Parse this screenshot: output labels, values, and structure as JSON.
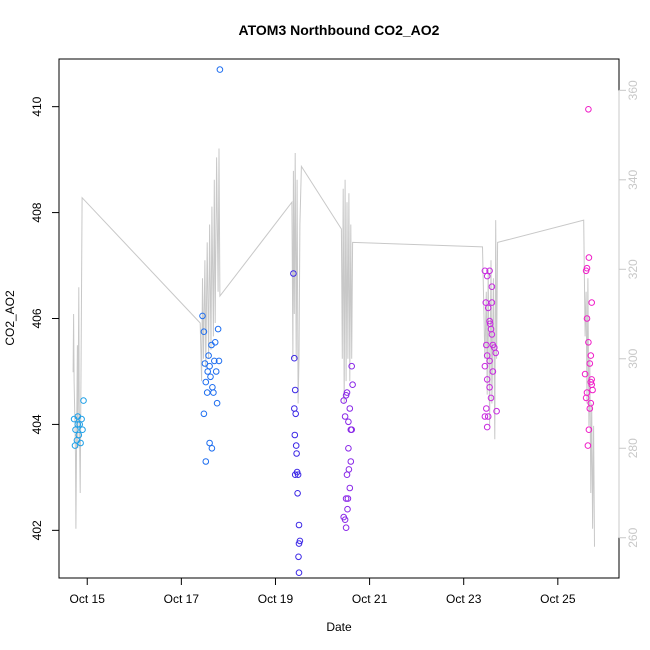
{
  "chart_data": {
    "type": "scatter",
    "title": "ATOM3 Northbound CO2_AO2",
    "xlabel": "Date",
    "ylabel": "CO2_AO2",
    "x_ticks": [
      "Oct 15",
      "Oct 17",
      "Oct 19",
      "Oct 21",
      "Oct 23",
      "Oct 25"
    ],
    "x_tick_days": [
      15,
      17,
      19,
      21,
      23,
      25
    ],
    "xlim": [
      14.4,
      26.3
    ],
    "y_ticks": [
      "402",
      "404",
      "406",
      "408",
      "410"
    ],
    "y_tick_values": [
      402,
      404,
      406,
      408,
      410
    ],
    "ylim": [
      401.1,
      410.9
    ],
    "y2_ticks": [
      "260",
      "280",
      "300",
      "320",
      "340",
      "360"
    ],
    "y2_tick_values": [
      260,
      280,
      300,
      320,
      340,
      360
    ],
    "y2lim": [
      251,
      367
    ],
    "grid": false,
    "colors": {
      "points": [
        "#1ea0e8",
        "#1e6ef0",
        "#3c28e6",
        "#8a28e8",
        "#c828e0",
        "#f01ec8"
      ],
      "line": "#c8c8c8",
      "right_axis": "#c8c8c8",
      "axis": "#000000"
    },
    "points": [
      {
        "day": 14.72,
        "y": 404.1
      },
      {
        "day": 14.75,
        "y": 403.9
      },
      {
        "day": 14.78,
        "y": 403.7
      },
      {
        "day": 14.8,
        "y": 404.15
      },
      {
        "day": 14.82,
        "y": 403.8
      },
      {
        "day": 14.84,
        "y": 404.0
      },
      {
        "day": 14.86,
        "y": 403.65
      },
      {
        "day": 14.88,
        "y": 404.1
      },
      {
        "day": 14.9,
        "y": 403.9
      },
      {
        "day": 14.74,
        "y": 403.6
      },
      {
        "day": 14.92,
        "y": 404.45
      },
      {
        "day": 14.8,
        "y": 404.0
      },
      {
        "day": 17.45,
        "y": 406.05
      },
      {
        "day": 17.48,
        "y": 405.75
      },
      {
        "day": 17.5,
        "y": 405.15
      },
      {
        "day": 17.52,
        "y": 404.8
      },
      {
        "day": 17.55,
        "y": 404.6
      },
      {
        "day": 17.58,
        "y": 405.3
      },
      {
        "day": 17.6,
        "y": 405.1
      },
      {
        "day": 17.62,
        "y": 404.9
      },
      {
        "day": 17.64,
        "y": 405.5
      },
      {
        "day": 17.66,
        "y": 404.7
      },
      {
        "day": 17.7,
        "y": 405.2
      },
      {
        "day": 17.72,
        "y": 405.55
      },
      {
        "day": 17.74,
        "y": 405.0
      },
      {
        "day": 17.76,
        "y": 404.4
      },
      {
        "day": 17.78,
        "y": 405.8
      },
      {
        "day": 17.8,
        "y": 405.2
      },
      {
        "day": 17.6,
        "y": 403.65
      },
      {
        "day": 17.65,
        "y": 403.55
      },
      {
        "day": 17.52,
        "y": 403.3
      },
      {
        "day": 17.48,
        "y": 404.2
      },
      {
        "day": 17.82,
        "y": 410.7
      },
      {
        "day": 17.68,
        "y": 404.6
      },
      {
        "day": 17.56,
        "y": 405.0
      },
      {
        "day": 19.38,
        "y": 406.85
      },
      {
        "day": 19.4,
        "y": 405.25
      },
      {
        "day": 19.42,
        "y": 404.65
      },
      {
        "day": 19.4,
        "y": 404.3
      },
      {
        "day": 19.43,
        "y": 404.2
      },
      {
        "day": 19.41,
        "y": 403.8
      },
      {
        "day": 19.44,
        "y": 403.6
      },
      {
        "day": 19.45,
        "y": 403.45
      },
      {
        "day": 19.42,
        "y": 403.05
      },
      {
        "day": 19.46,
        "y": 403.1
      },
      {
        "day": 19.48,
        "y": 403.05
      },
      {
        "day": 19.47,
        "y": 402.7
      },
      {
        "day": 19.5,
        "y": 402.1
      },
      {
        "day": 19.52,
        "y": 401.8
      },
      {
        "day": 19.5,
        "y": 401.75
      },
      {
        "day": 19.49,
        "y": 401.5
      },
      {
        "day": 19.5,
        "y": 401.2
      },
      {
        "day": 20.45,
        "y": 404.45
      },
      {
        "day": 20.5,
        "y": 404.55
      },
      {
        "day": 20.52,
        "y": 404.6
      },
      {
        "day": 20.48,
        "y": 404.15
      },
      {
        "day": 20.55,
        "y": 404.05
      },
      {
        "day": 20.58,
        "y": 404.3
      },
      {
        "day": 20.6,
        "y": 403.9
      },
      {
        "day": 20.62,
        "y": 403.9
      },
      {
        "day": 20.55,
        "y": 403.55
      },
      {
        "day": 20.6,
        "y": 403.3
      },
      {
        "day": 20.56,
        "y": 403.15
      },
      {
        "day": 20.52,
        "y": 403.05
      },
      {
        "day": 20.58,
        "y": 402.8
      },
      {
        "day": 20.5,
        "y": 402.6
      },
      {
        "day": 20.54,
        "y": 402.6
      },
      {
        "day": 20.53,
        "y": 402.4
      },
      {
        "day": 20.48,
        "y": 402.2
      },
      {
        "day": 20.45,
        "y": 402.25
      },
      {
        "day": 20.5,
        "y": 402.05
      },
      {
        "day": 20.62,
        "y": 405.1
      },
      {
        "day": 20.64,
        "y": 404.75
      },
      {
        "day": 23.45,
        "y": 406.9
      },
      {
        "day": 23.5,
        "y": 406.8
      },
      {
        "day": 23.55,
        "y": 406.9
      },
      {
        "day": 23.6,
        "y": 406.6
      },
      {
        "day": 23.52,
        "y": 406.2
      },
      {
        "day": 23.55,
        "y": 405.95
      },
      {
        "day": 23.58,
        "y": 405.8
      },
      {
        "day": 23.6,
        "y": 405.7
      },
      {
        "day": 23.62,
        "y": 405.5
      },
      {
        "day": 23.48,
        "y": 405.5
      },
      {
        "day": 23.5,
        "y": 405.3
      },
      {
        "day": 23.55,
        "y": 405.2
      },
      {
        "day": 23.65,
        "y": 405.45
      },
      {
        "day": 23.68,
        "y": 405.35
      },
      {
        "day": 23.45,
        "y": 405.1
      },
      {
        "day": 23.5,
        "y": 404.85
      },
      {
        "day": 23.55,
        "y": 404.7
      },
      {
        "day": 23.58,
        "y": 404.5
      },
      {
        "day": 23.48,
        "y": 404.3
      },
      {
        "day": 23.52,
        "y": 404.15
      },
      {
        "day": 23.45,
        "y": 404.15
      },
      {
        "day": 23.5,
        "y": 403.95
      },
      {
        "day": 23.7,
        "y": 404.25
      },
      {
        "day": 23.56,
        "y": 405.9
      },
      {
        "day": 23.6,
        "y": 406.3
      },
      {
        "day": 23.62,
        "y": 405.0
      },
      {
        "day": 23.47,
        "y": 406.3
      },
      {
        "day": 25.6,
        "y": 406.9
      },
      {
        "day": 25.62,
        "y": 406.95
      },
      {
        "day": 25.66,
        "y": 407.15
      },
      {
        "day": 25.72,
        "y": 406.3
      },
      {
        "day": 25.62,
        "y": 406.0
      },
      {
        "day": 25.65,
        "y": 405.55
      },
      {
        "day": 25.7,
        "y": 405.3
      },
      {
        "day": 25.68,
        "y": 405.15
      },
      {
        "day": 25.58,
        "y": 404.95
      },
      {
        "day": 25.7,
        "y": 404.8
      },
      {
        "day": 25.72,
        "y": 404.75
      },
      {
        "day": 25.74,
        "y": 404.65
      },
      {
        "day": 25.62,
        "y": 404.6
      },
      {
        "day": 25.7,
        "y": 404.4
      },
      {
        "day": 25.68,
        "y": 404.3
      },
      {
        "day": 25.66,
        "y": 403.9
      },
      {
        "day": 25.64,
        "y": 403.6
      },
      {
        "day": 25.65,
        "y": 409.95
      },
      {
        "day": 25.6,
        "y": 404.5
      },
      {
        "day": 25.72,
        "y": 404.85
      }
    ],
    "line_series": [
      {
        "day": 14.7,
        "y2": 297
      },
      {
        "day": 14.71,
        "y2": 310
      },
      {
        "day": 14.72,
        "y2": 295
      },
      {
        "day": 14.74,
        "y2": 285
      },
      {
        "day": 14.75,
        "y2": 278
      },
      {
        "day": 14.76,
        "y2": 262
      },
      {
        "day": 14.78,
        "y2": 290
      },
      {
        "day": 14.79,
        "y2": 303
      },
      {
        "day": 14.8,
        "y2": 280
      },
      {
        "day": 14.82,
        "y2": 316
      },
      {
        "day": 14.83,
        "y2": 290
      },
      {
        "day": 14.85,
        "y2": 270
      },
      {
        "day": 14.87,
        "y2": 300
      },
      {
        "day": 14.89,
        "y2": 336
      },
      {
        "day": 17.4,
        "y2": 308
      },
      {
        "day": 17.43,
        "y2": 295
      },
      {
        "day": 17.45,
        "y2": 318
      },
      {
        "day": 17.47,
        "y2": 300
      },
      {
        "day": 17.5,
        "y2": 322
      },
      {
        "day": 17.52,
        "y2": 298
      },
      {
        "day": 17.55,
        "y2": 326
      },
      {
        "day": 17.58,
        "y2": 300
      },
      {
        "day": 17.6,
        "y2": 330
      },
      {
        "day": 17.63,
        "y2": 302
      },
      {
        "day": 17.65,
        "y2": 334
      },
      {
        "day": 17.68,
        "y2": 305
      },
      {
        "day": 17.7,
        "y2": 340
      },
      {
        "day": 17.72,
        "y2": 308
      },
      {
        "day": 17.75,
        "y2": 345
      },
      {
        "day": 17.78,
        "y2": 315
      },
      {
        "day": 17.8,
        "y2": 347
      },
      {
        "day": 17.82,
        "y2": 314
      },
      {
        "day": 19.35,
        "y2": 335
      },
      {
        "day": 19.37,
        "y2": 300
      },
      {
        "day": 19.38,
        "y2": 342
      },
      {
        "day": 19.4,
        "y2": 310
      },
      {
        "day": 19.42,
        "y2": 346
      },
      {
        "day": 19.44,
        "y2": 300
      },
      {
        "day": 19.46,
        "y2": 340
      },
      {
        "day": 19.48,
        "y2": 290
      },
      {
        "day": 19.5,
        "y2": 300
      },
      {
        "day": 19.52,
        "y2": 330
      },
      {
        "day": 19.55,
        "y2": 343
      },
      {
        "day": 20.4,
        "y2": 329
      },
      {
        "day": 20.42,
        "y2": 300
      },
      {
        "day": 20.44,
        "y2": 338
      },
      {
        "day": 20.46,
        "y2": 290
      },
      {
        "day": 20.48,
        "y2": 340
      },
      {
        "day": 20.5,
        "y2": 295
      },
      {
        "day": 20.52,
        "y2": 335
      },
      {
        "day": 20.54,
        "y2": 300
      },
      {
        "day": 20.56,
        "y2": 337
      },
      {
        "day": 20.58,
        "y2": 295
      },
      {
        "day": 20.6,
        "y2": 330
      },
      {
        "day": 20.62,
        "y2": 300
      },
      {
        "day": 20.64,
        "y2": 326
      },
      {
        "day": 23.4,
        "y2": 325
      },
      {
        "day": 23.45,
        "y2": 300
      },
      {
        "day": 23.48,
        "y2": 315
      },
      {
        "day": 23.5,
        "y2": 292
      },
      {
        "day": 23.52,
        "y2": 320
      },
      {
        "day": 23.55,
        "y2": 285
      },
      {
        "day": 23.58,
        "y2": 322
      },
      {
        "day": 23.6,
        "y2": 290
      },
      {
        "day": 23.63,
        "y2": 318
      },
      {
        "day": 23.66,
        "y2": 282
      },
      {
        "day": 23.68,
        "y2": 331
      },
      {
        "day": 23.7,
        "y2": 300
      },
      {
        "day": 23.72,
        "y2": 326
      },
      {
        "day": 25.55,
        "y2": 331
      },
      {
        "day": 25.58,
        "y2": 305
      },
      {
        "day": 25.6,
        "y2": 315
      },
      {
        "day": 25.62,
        "y2": 290
      },
      {
        "day": 25.64,
        "y2": 318
      },
      {
        "day": 25.66,
        "y2": 285
      },
      {
        "day": 25.68,
        "y2": 300
      },
      {
        "day": 25.7,
        "y2": 270
      },
      {
        "day": 25.72,
        "y2": 290
      },
      {
        "day": 25.74,
        "y2": 262
      },
      {
        "day": 25.76,
        "y2": 285
      },
      {
        "day": 25.78,
        "y2": 258
      }
    ]
  }
}
